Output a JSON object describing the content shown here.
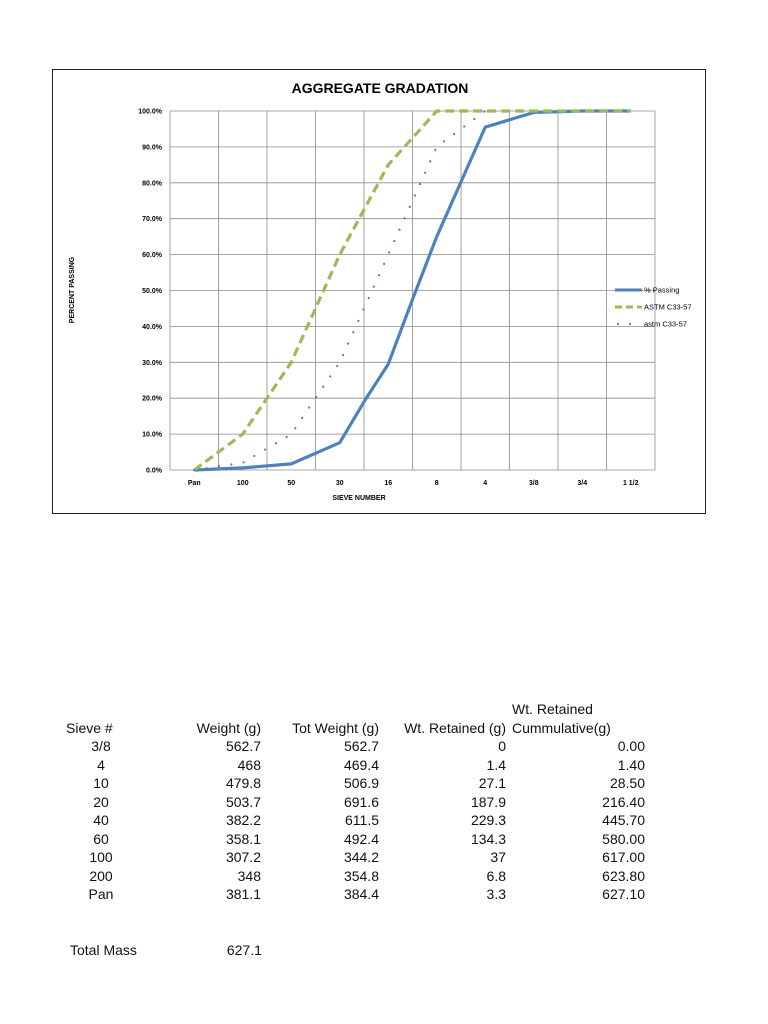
{
  "chart_data": {
    "type": "line",
    "title": "AGGREGATE GRADATION",
    "xlabel": "SIEVE NUMBER",
    "ylabel": "PERCENT PASSING",
    "x_ticks": [
      "Pan",
      "100",
      "50",
      "30",
      "16",
      "8",
      "4",
      "3/8",
      "3/4",
      "1 1/2"
    ],
    "y_ticks": [
      "0.0%",
      "10.0%",
      "20.0%",
      "30.0%",
      "40.0%",
      "50.0%",
      "60.0%",
      "70.0%",
      "80.0%",
      "90.0%",
      "100.0%"
    ],
    "ylim": [
      0,
      100
    ],
    "grid": true,
    "legend_position": "right",
    "series": [
      {
        "name": "% Passing",
        "style": "solid",
        "color": "#4f81bd",
        "points": [
          [
            0,
            0
          ],
          [
            1,
            0.6
          ],
          [
            2,
            1.7
          ],
          [
            3,
            7.6
          ],
          [
            3.5,
            19
          ],
          [
            4,
            29.5
          ],
          [
            4.5,
            47.5
          ],
          [
            5,
            65
          ],
          [
            6,
            95.5
          ],
          [
            7,
            99.6
          ],
          [
            8,
            100
          ],
          [
            9,
            100
          ]
        ]
      },
      {
        "name": "ASTM C33-57",
        "style": "dashed",
        "color": "#9bbb59",
        "points": [
          [
            0,
            0
          ],
          [
            1,
            10
          ],
          [
            2,
            30
          ],
          [
            3,
            60
          ],
          [
            4,
            85
          ],
          [
            5,
            100
          ],
          [
            6,
            100
          ],
          [
            7,
            100
          ],
          [
            8,
            100
          ],
          [
            9,
            100
          ]
        ]
      },
      {
        "name": "astm C33-57",
        "style": "dotted",
        "color": "#8064a2",
        "points": [
          [
            0,
            0
          ],
          [
            1,
            2
          ],
          [
            2,
            10
          ],
          [
            3,
            30
          ],
          [
            4,
            60
          ],
          [
            5,
            90
          ],
          [
            6,
            100
          ]
        ]
      }
    ]
  },
  "table": {
    "headers": [
      "Sieve #",
      "Weight (g)",
      "Tot Weight (g)",
      "Wt. Retained (g)",
      "Wt. Retained",
      "Cummulative(g)"
    ],
    "rows": [
      [
        "3/8",
        "562.7",
        "562.7",
        "0",
        "0.00"
      ],
      [
        "4",
        "468",
        "469.4",
        "1.4",
        "1.40"
      ],
      [
        "10",
        "479.8",
        "506.9",
        "27.1",
        "28.50"
      ],
      [
        "20",
        "503.7",
        "691.6",
        "187.9",
        "216.40"
      ],
      [
        "40",
        "382.2",
        "611.5",
        "229.3",
        "445.70"
      ],
      [
        "60",
        "358.1",
        "492.4",
        "134.3",
        "580.00"
      ],
      [
        "100",
        "307.2",
        "344.2",
        "37",
        "617.00"
      ],
      [
        "200",
        "348",
        "354.8",
        "6.8",
        "623.80"
      ],
      [
        "Pan",
        "381.1",
        "384.4",
        "3.3",
        "627.10"
      ]
    ]
  },
  "total": {
    "label": "Total Mass",
    "value": "627.1"
  }
}
